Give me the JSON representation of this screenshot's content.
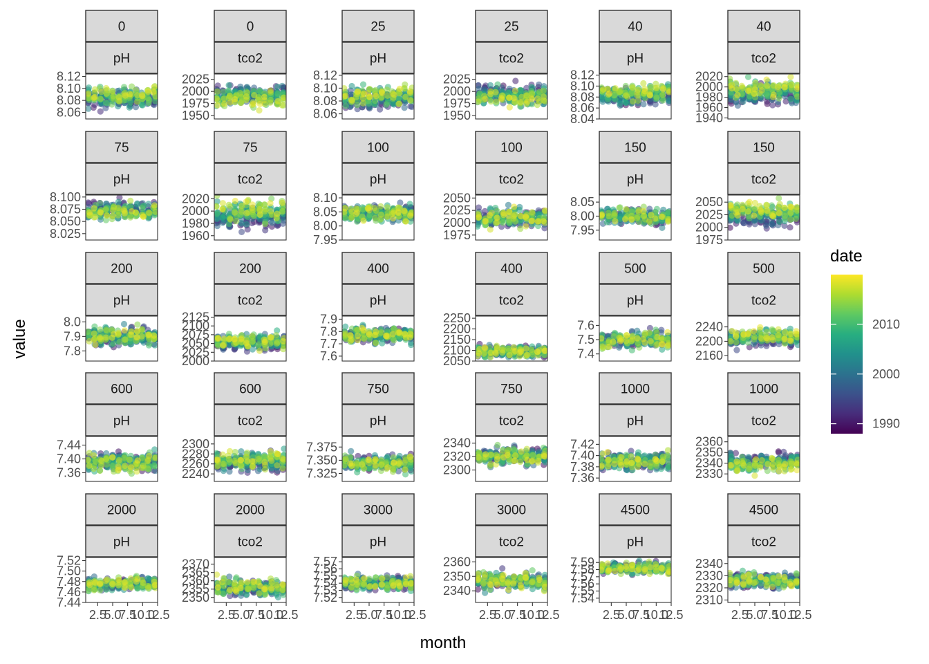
{
  "chart_data": {
    "type": "scatter",
    "facet_layout": {
      "rows": 5,
      "cols": 6
    },
    "xlabel": "month",
    "ylabel": "value",
    "x_ticks": [
      "2.5",
      "5.0",
      "7.5",
      "10.0",
      "12.5"
    ],
    "xlim": [
      0.5,
      12.5
    ],
    "legend": {
      "title": "date",
      "position": "right",
      "range": [
        1988,
        2020
      ],
      "ticks": [
        "1990",
        "2000",
        "2010"
      ],
      "palette": "viridis"
    },
    "panels": [
      {
        "depth": "0",
        "param": "pH",
        "ylim": [
          8.049,
          8.124
        ],
        "yticks": [
          "8.06",
          "8.08",
          "8.10",
          "8.12"
        ],
        "center": 8.085,
        "spread": 0.012,
        "trend": 0.006
      },
      {
        "depth": "0",
        "param": "tco2",
        "ylim": [
          1943,
          2036
        ],
        "yticks": [
          "1950",
          "1975",
          "2000",
          "2025"
        ],
        "center": 1990,
        "spread": 16,
        "trend": -8
      },
      {
        "depth": "25",
        "param": "pH",
        "ylim": [
          8.052,
          8.122
        ],
        "yticks": [
          "8.06",
          "8.08",
          "8.10",
          "8.12"
        ],
        "center": 8.085,
        "spread": 0.012,
        "trend": 0.006
      },
      {
        "depth": "25",
        "param": "tco2",
        "ylim": [
          1943,
          2036
        ],
        "yticks": [
          "1950",
          "1975",
          "2000",
          "2025"
        ],
        "center": 1992,
        "spread": 16,
        "trend": -8
      },
      {
        "depth": "40",
        "param": "pH",
        "ylim": [
          8.04,
          8.122
        ],
        "yticks": [
          "8.04",
          "8.06",
          "8.08",
          "8.10",
          "8.12"
        ],
        "center": 8.083,
        "spread": 0.014,
        "trend": 0.006
      },
      {
        "depth": "40",
        "param": "tco2",
        "ylim": [
          1938,
          2025
        ],
        "yticks": [
          "1940",
          "1960",
          "1980",
          "2000",
          "2020"
        ],
        "center": 1990,
        "spread": 15,
        "trend": 10
      },
      {
        "depth": "75",
        "param": "pH",
        "ylim": [
          8.012,
          8.104
        ],
        "yticks": [
          "8.025",
          "8.050",
          "8.075",
          "8.100"
        ],
        "center": 8.072,
        "spread": 0.014,
        "trend": -0.005
      },
      {
        "depth": "75",
        "param": "tco2",
        "ylim": [
          1953,
          2026
        ],
        "yticks": [
          "1960",
          "1980",
          "2000",
          "2020"
        ],
        "center": 1995,
        "spread": 14,
        "trend": 10
      },
      {
        "depth": "100",
        "param": "pH",
        "ylim": [
          7.95,
          8.11
        ],
        "yticks": [
          "7.95",
          "8.00",
          "8.05",
          "8.10"
        ],
        "center": 8.045,
        "spread": 0.022,
        "trend": 0.0
      },
      {
        "depth": "100",
        "param": "tco2",
        "ylim": [
          1965,
          2056
        ],
        "yticks": [
          "1975",
          "2000",
          "2025",
          "2050"
        ],
        "center": 2010,
        "spread": 16,
        "trend": 0
      },
      {
        "depth": "150",
        "param": "pH",
        "ylim": [
          7.915,
          8.075
        ],
        "yticks": [
          "7.95",
          "8.00",
          "8.05"
        ],
        "center": 8.0,
        "spread": 0.025,
        "trend": 0.0
      },
      {
        "depth": "150",
        "param": "tco2",
        "ylim": [
          1975,
          2064
        ],
        "yticks": [
          "1975",
          "2000",
          "2025",
          "2050"
        ],
        "center": 2025,
        "spread": 15,
        "trend": 12
      },
      {
        "depth": "200",
        "param": "pH",
        "ylim": [
          7.73,
          8.04
        ],
        "yticks": [
          "7.8",
          "7.9",
          "8.0"
        ],
        "center": 7.9,
        "spread": 0.05,
        "trend": 0.0
      },
      {
        "depth": "200",
        "param": "tco2",
        "ylim": [
          2000,
          2128
        ],
        "yticks": [
          "2000",
          "2025",
          "2050",
          "2075",
          "2100",
          "2125"
        ],
        "center": 2055,
        "spread": 18,
        "trend": 5
      },
      {
        "depth": "400",
        "param": "pH",
        "ylim": [
          7.56,
          7.925
        ],
        "yticks": [
          "7.6",
          "7.7",
          "7.8",
          "7.9"
        ],
        "center": 7.77,
        "spread": 0.05,
        "trend": 0.0
      },
      {
        "depth": "400",
        "param": "tco2",
        "ylim": [
          2050,
          2260
        ],
        "yticks": [
          "2050",
          "2100",
          "2150",
          "2200",
          "2250"
        ],
        "center": 2095,
        "spread": 20,
        "trend": 0
      },
      {
        "depth": "500",
        "param": "pH",
        "ylim": [
          7.35,
          7.665
        ],
        "yticks": [
          "7.4",
          "7.5",
          "7.6"
        ],
        "center": 7.5,
        "spread": 0.05,
        "trend": 0.0
      },
      {
        "depth": "500",
        "param": "tco2",
        "ylim": [
          2145,
          2270
        ],
        "yticks": [
          "2160",
          "2200",
          "2240"
        ],
        "center": 2210,
        "spread": 18,
        "trend": 8
      },
      {
        "depth": "600",
        "param": "pH",
        "ylim": [
          7.335,
          7.465
        ],
        "yticks": [
          "7.36",
          "7.40",
          "7.44"
        ],
        "center": 7.39,
        "spread": 0.022,
        "trend": 0.0
      },
      {
        "depth": "600",
        "param": "tco2",
        "ylim": [
          2225,
          2315
        ],
        "yticks": [
          "2240",
          "2260",
          "2280",
          "2300"
        ],
        "center": 2265,
        "spread": 15,
        "trend": 6
      },
      {
        "depth": "750",
        "param": "pH",
        "ylim": [
          7.31,
          7.395
        ],
        "yticks": [
          "7.325",
          "7.350",
          "7.375"
        ],
        "center": 7.345,
        "spread": 0.013,
        "trend": 0.0
      },
      {
        "depth": "750",
        "param": "tco2",
        "ylim": [
          2283,
          2350
        ],
        "yticks": [
          "2300",
          "2320",
          "2340"
        ],
        "center": 2320,
        "spread": 10,
        "trend": 0
      },
      {
        "depth": "1000",
        "param": "pH",
        "ylim": [
          7.354,
          7.434
        ],
        "yticks": [
          "7.36",
          "7.38",
          "7.40",
          "7.42"
        ],
        "center": 7.39,
        "spread": 0.012,
        "trend": 0.0
      },
      {
        "depth": "1000",
        "param": "tco2",
        "ylim": [
          2323,
          2365
        ],
        "yticks": [
          "2330",
          "2340",
          "2350",
          "2360"
        ],
        "center": 2341,
        "spread": 6,
        "trend": -3
      },
      {
        "depth": "2000",
        "param": "pH",
        "ylim": [
          7.44,
          7.526
        ],
        "yticks": [
          "7.44",
          "7.46",
          "7.48",
          "7.50",
          "7.52"
        ],
        "center": 7.475,
        "spread": 0.011,
        "trend": 0.0
      },
      {
        "depth": "2000",
        "param": "tco2",
        "ylim": [
          2347,
          2374
        ],
        "yticks": [
          "2350",
          "2355",
          "2360",
          "2365",
          "2370"
        ],
        "center": 2356,
        "spread": 4,
        "trend": 1
      },
      {
        "depth": "3000",
        "param": "pH",
        "ylim": [
          7.513,
          7.576
        ],
        "yticks": [
          "7.52",
          "7.53",
          "7.54",
          "7.55",
          "7.56",
          "7.57"
        ],
        "center": 7.54,
        "spread": 0.008,
        "trend": 0.0
      },
      {
        "depth": "3000",
        "param": "tco2",
        "ylim": [
          2332,
          2363
        ],
        "yticks": [
          "2340",
          "2350",
          "2360"
        ],
        "center": 2347,
        "spread": 5,
        "trend": 0
      },
      {
        "depth": "4500",
        "param": "pH",
        "ylim": [
          7.534,
          7.597
        ],
        "yticks": [
          "7.54",
          "7.55",
          "7.56",
          "7.57",
          "7.58",
          "7.59"
        ],
        "center": 7.582,
        "spread": 0.006,
        "trend": 0.0
      },
      {
        "depth": "4500",
        "param": "tco2",
        "ylim": [
          2308,
          2345
        ],
        "yticks": [
          "2310",
          "2320",
          "2330",
          "2340"
        ],
        "center": 2326,
        "spread": 5,
        "trend": 0
      }
    ]
  }
}
